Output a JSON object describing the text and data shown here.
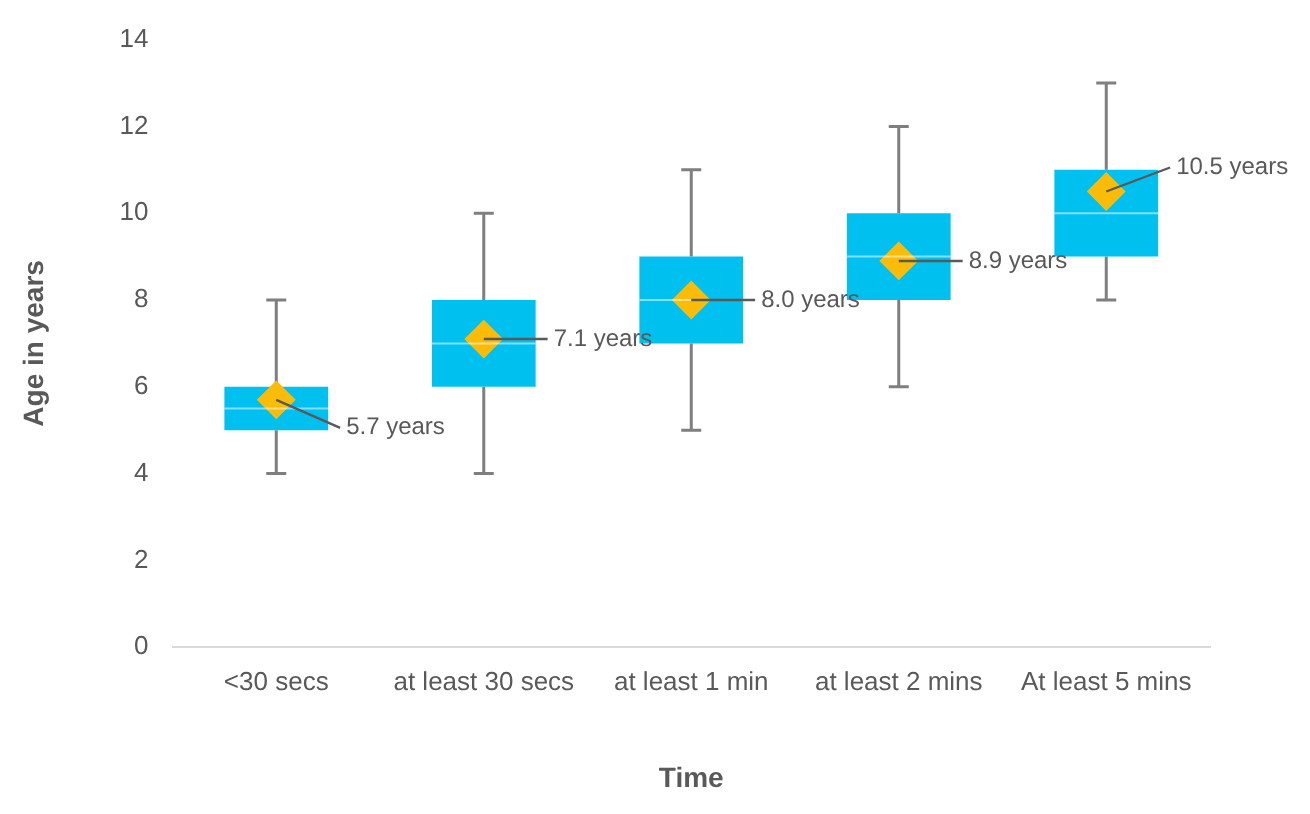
{
  "chart_data": {
    "type": "box",
    "xlabel": "Time",
    "ylabel": "Age in years",
    "categories": [
      "<30 secs",
      "at least 30 secs",
      "at least 1 min",
      "at least 2 mins",
      "At least 5 mins"
    ],
    "ylim": [
      0,
      14
    ],
    "yticks": [
      0,
      2,
      4,
      6,
      8,
      10,
      12,
      14
    ],
    "grid": false,
    "legend": false,
    "series": [
      {
        "color": "#00c0f0",
        "boxes": [
          {
            "low": 4,
            "q1": 5,
            "median": 5.5,
            "q3": 6,
            "high": 8
          },
          {
            "low": 4,
            "q1": 6,
            "median": 7,
            "q3": 8,
            "high": 10
          },
          {
            "low": 5,
            "q1": 7,
            "median": 8,
            "q3": 9,
            "high": 11
          },
          {
            "low": 6,
            "q1": 8,
            "median": 9,
            "q3": 10,
            "high": 12
          },
          {
            "low": 8,
            "q1": 9,
            "median": 10,
            "q3": 11,
            "high": 13
          }
        ]
      },
      {
        "type": "scatter",
        "color": "#fbbc09",
        "marker": "diamond",
        "x": [
          "<30 secs",
          "at least 30 secs",
          "at least 1 min",
          "at least 2 mins",
          "At least 5 mins"
        ],
        "values": [
          5.7,
          7.1,
          8.0,
          8.9,
          10.5
        ],
        "value_labels": [
          "5.7 years",
          "7.1 years",
          "8.0 years",
          "8.9 years",
          "10.5 years"
        ]
      }
    ]
  }
}
